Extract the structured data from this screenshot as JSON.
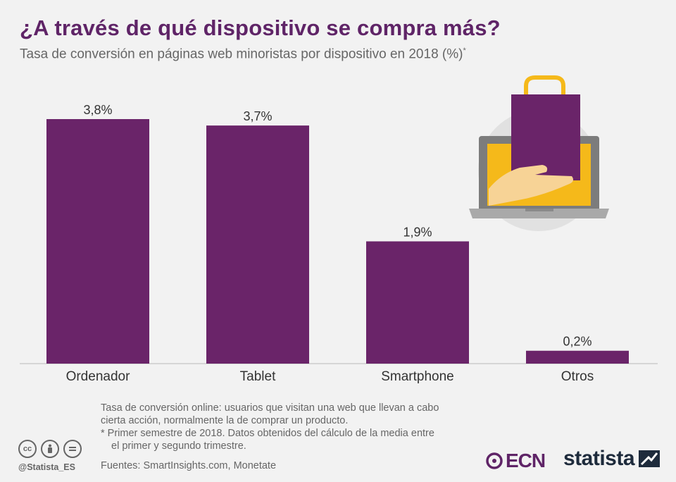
{
  "title": "¿A través de qué dispositivo se compra más?",
  "subtitle": "Tasa de conversión en páginas web minoristas por dispositivo en 2018 (%)",
  "subtitle_mark": "*",
  "notes": [
    "Tasa de conversión online: usuarios que visitan una web que llevan a cabo",
    "cierta acción, normalmente la de comprar un producto.",
    "* Primer semestre de 2018. Datos obtenidos del cálculo de la media entre",
    "el primer y segundo trimestre."
  ],
  "sources": "Fuentes: SmartInsights.com, Monetate",
  "handle": "@Statista_ES",
  "brand_left": "ECN",
  "brand_right": "statista",
  "colors": {
    "bar": "#6a2469",
    "title": "#5f2467",
    "accent_yellow": "#f5b91a"
  },
  "chart_data": {
    "type": "bar",
    "categories": [
      "Ordenador",
      "Tablet",
      "Smartphone",
      "Otros"
    ],
    "values": [
      3.8,
      3.7,
      1.9,
      0.2
    ],
    "value_labels": [
      "3,8%",
      "3,7%",
      "1,9%",
      "0,2%"
    ],
    "title": "¿A través de qué dispositivo se compra más?",
    "xlabel": "",
    "ylabel": "",
    "ylim": [
      0,
      3.8
    ],
    "grid": false,
    "legend": "none"
  }
}
